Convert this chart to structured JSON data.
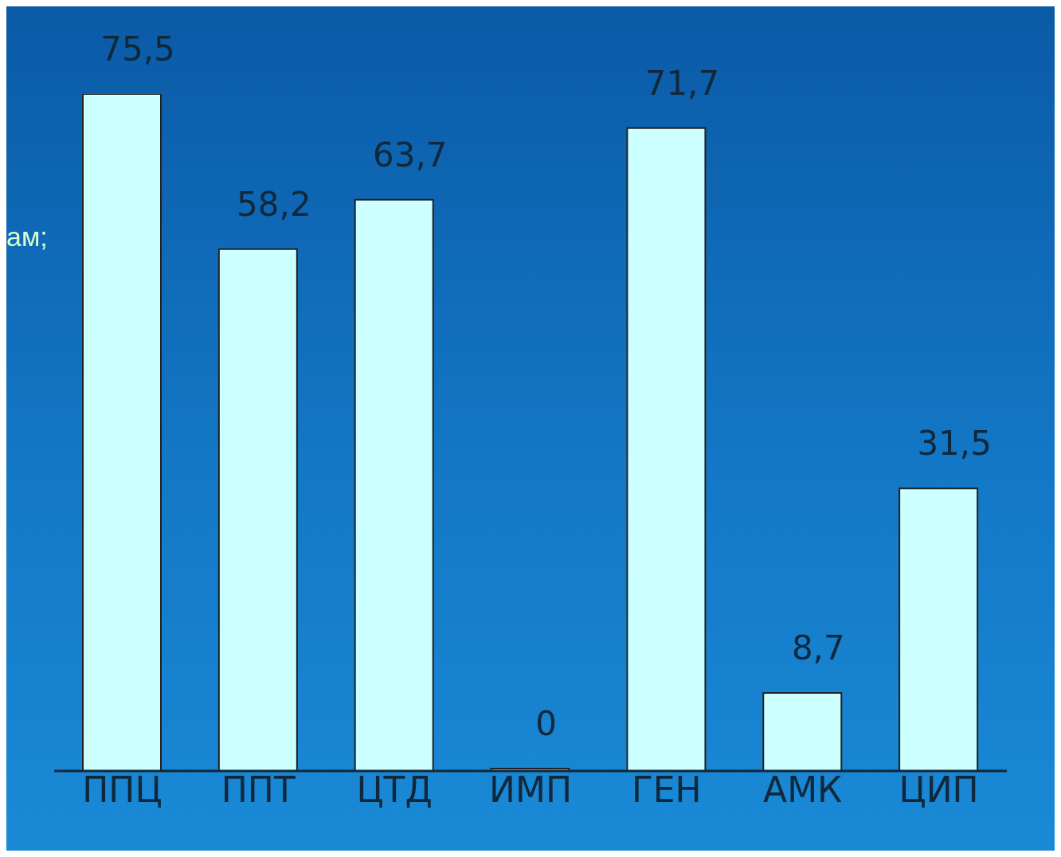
{
  "chart_data": {
    "type": "bar",
    "categories": [
      "ППЦ",
      "ППТ",
      "ЦТД",
      "ИМП",
      "ГЕН",
      "АМК",
      "ЦИП"
    ],
    "values": [
      75.5,
      58.2,
      63.7,
      0,
      71.7,
      8.7,
      31.5
    ],
    "value_labels": [
      "75,5",
      "58,2",
      "63,7",
      "0",
      "71,7",
      "8,7",
      "31,5"
    ],
    "color": "#ccffff",
    "annotations": [
      "ам;"
    ]
  }
}
